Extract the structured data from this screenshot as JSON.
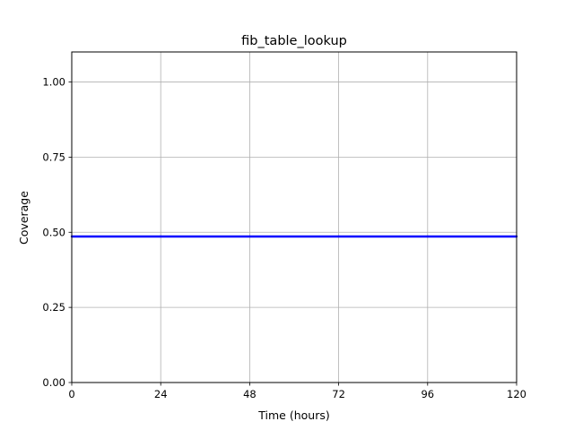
{
  "chart_data": {
    "type": "line",
    "title": "fib_table_lookup",
    "xlabel": "Time (hours)",
    "ylabel": "Coverage",
    "xlim": [
      0,
      120
    ],
    "ylim": [
      0,
      1.1
    ],
    "x_ticks": [
      {
        "value": 0,
        "label": "0"
      },
      {
        "value": 24,
        "label": "24"
      },
      {
        "value": 48,
        "label": "48"
      },
      {
        "value": 72,
        "label": "72"
      },
      {
        "value": 96,
        "label": "96"
      },
      {
        "value": 120,
        "label": "120"
      }
    ],
    "y_ticks": [
      {
        "value": 0,
        "label": "0.00"
      },
      {
        "value": 0.25,
        "label": "0.25"
      },
      {
        "value": 0.5,
        "label": "0.50"
      },
      {
        "value": 0.75,
        "label": "0.75"
      },
      {
        "value": 1.0,
        "label": "1.00"
      }
    ],
    "grid": true,
    "series": [
      {
        "color": "#0000ff",
        "x": [
          0,
          24,
          48,
          72,
          96,
          120
        ],
        "y": [
          0.486,
          0.486,
          0.486,
          0.486,
          0.486,
          0.486
        ]
      }
    ]
  }
}
